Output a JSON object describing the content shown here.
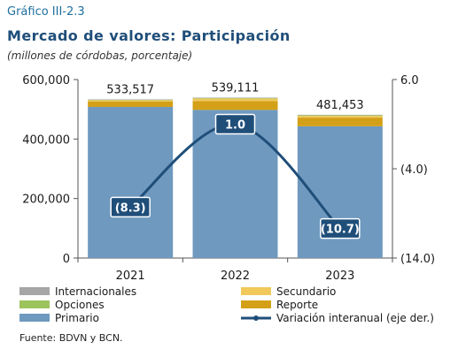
{
  "header": {
    "figure_label": "Gráfico III-2.3",
    "title": "Mercado de valores: Participación",
    "subtitle": "(millones de córdobas, porcentaje)"
  },
  "source": "Fuente: BDVN y BCN.",
  "chart_data": {
    "type": "bar",
    "stacked": true,
    "categories": [
      "2021",
      "2022",
      "2023"
    ],
    "series": [
      {
        "name": "Primario",
        "color": "#6f99bf",
        "values": [
          508000,
          498000,
          443000
        ]
      },
      {
        "name": "Reporte",
        "color": "#d4a017",
        "values": [
          18000,
          30000,
          29000
        ]
      },
      {
        "name": "Secundario",
        "color": "#f0c95a",
        "values": [
          5000,
          8000,
          6000
        ]
      },
      {
        "name": "Opciones",
        "color": "#9dc35c",
        "values": [
          1000,
          1500,
          2000
        ]
      },
      {
        "name": "Internacionales",
        "color": "#a6a6a6",
        "values": [
          1517,
          1611,
          1453
        ]
      }
    ],
    "totals": [
      533517,
      539111,
      481453
    ],
    "total_labels": [
      "533,517",
      "539,111",
      "481,453"
    ],
    "line": {
      "name": "Variación interanual (eje der.)",
      "color": "#1f4e79",
      "axis": "right",
      "values": [
        -8.3,
        1.0,
        -10.7
      ],
      "labels": [
        "(8.3)",
        "1.0",
        "(10.7)"
      ]
    },
    "y_left": {
      "min": 0,
      "max": 600000,
      "ticks": [
        0,
        200000,
        400000,
        600000
      ],
      "tick_labels": [
        "0",
        "200,000",
        "400,000",
        "600,000"
      ]
    },
    "y_right": {
      "min": -14,
      "max": 6,
      "ticks": [
        -14,
        -4,
        6
      ],
      "tick_labels": [
        "(14.0)",
        "(4.0)",
        "6.0"
      ]
    },
    "legend": {
      "placement": "bottom",
      "items": [
        {
          "label": "Internacionales",
          "color": "#a6a6a6",
          "kind": "box"
        },
        {
          "label": "Secundario",
          "color": "#f0c95a",
          "kind": "box"
        },
        {
          "label": "Opciones",
          "color": "#9dc35c",
          "kind": "box"
        },
        {
          "label": "Reporte",
          "color": "#d4a017",
          "kind": "box"
        },
        {
          "label": "Primario",
          "color": "#6f99bf",
          "kind": "box"
        },
        {
          "label": "Variación interanual (eje der.)",
          "color": "#1f4e79",
          "kind": "line"
        }
      ]
    },
    "grid": false
  }
}
